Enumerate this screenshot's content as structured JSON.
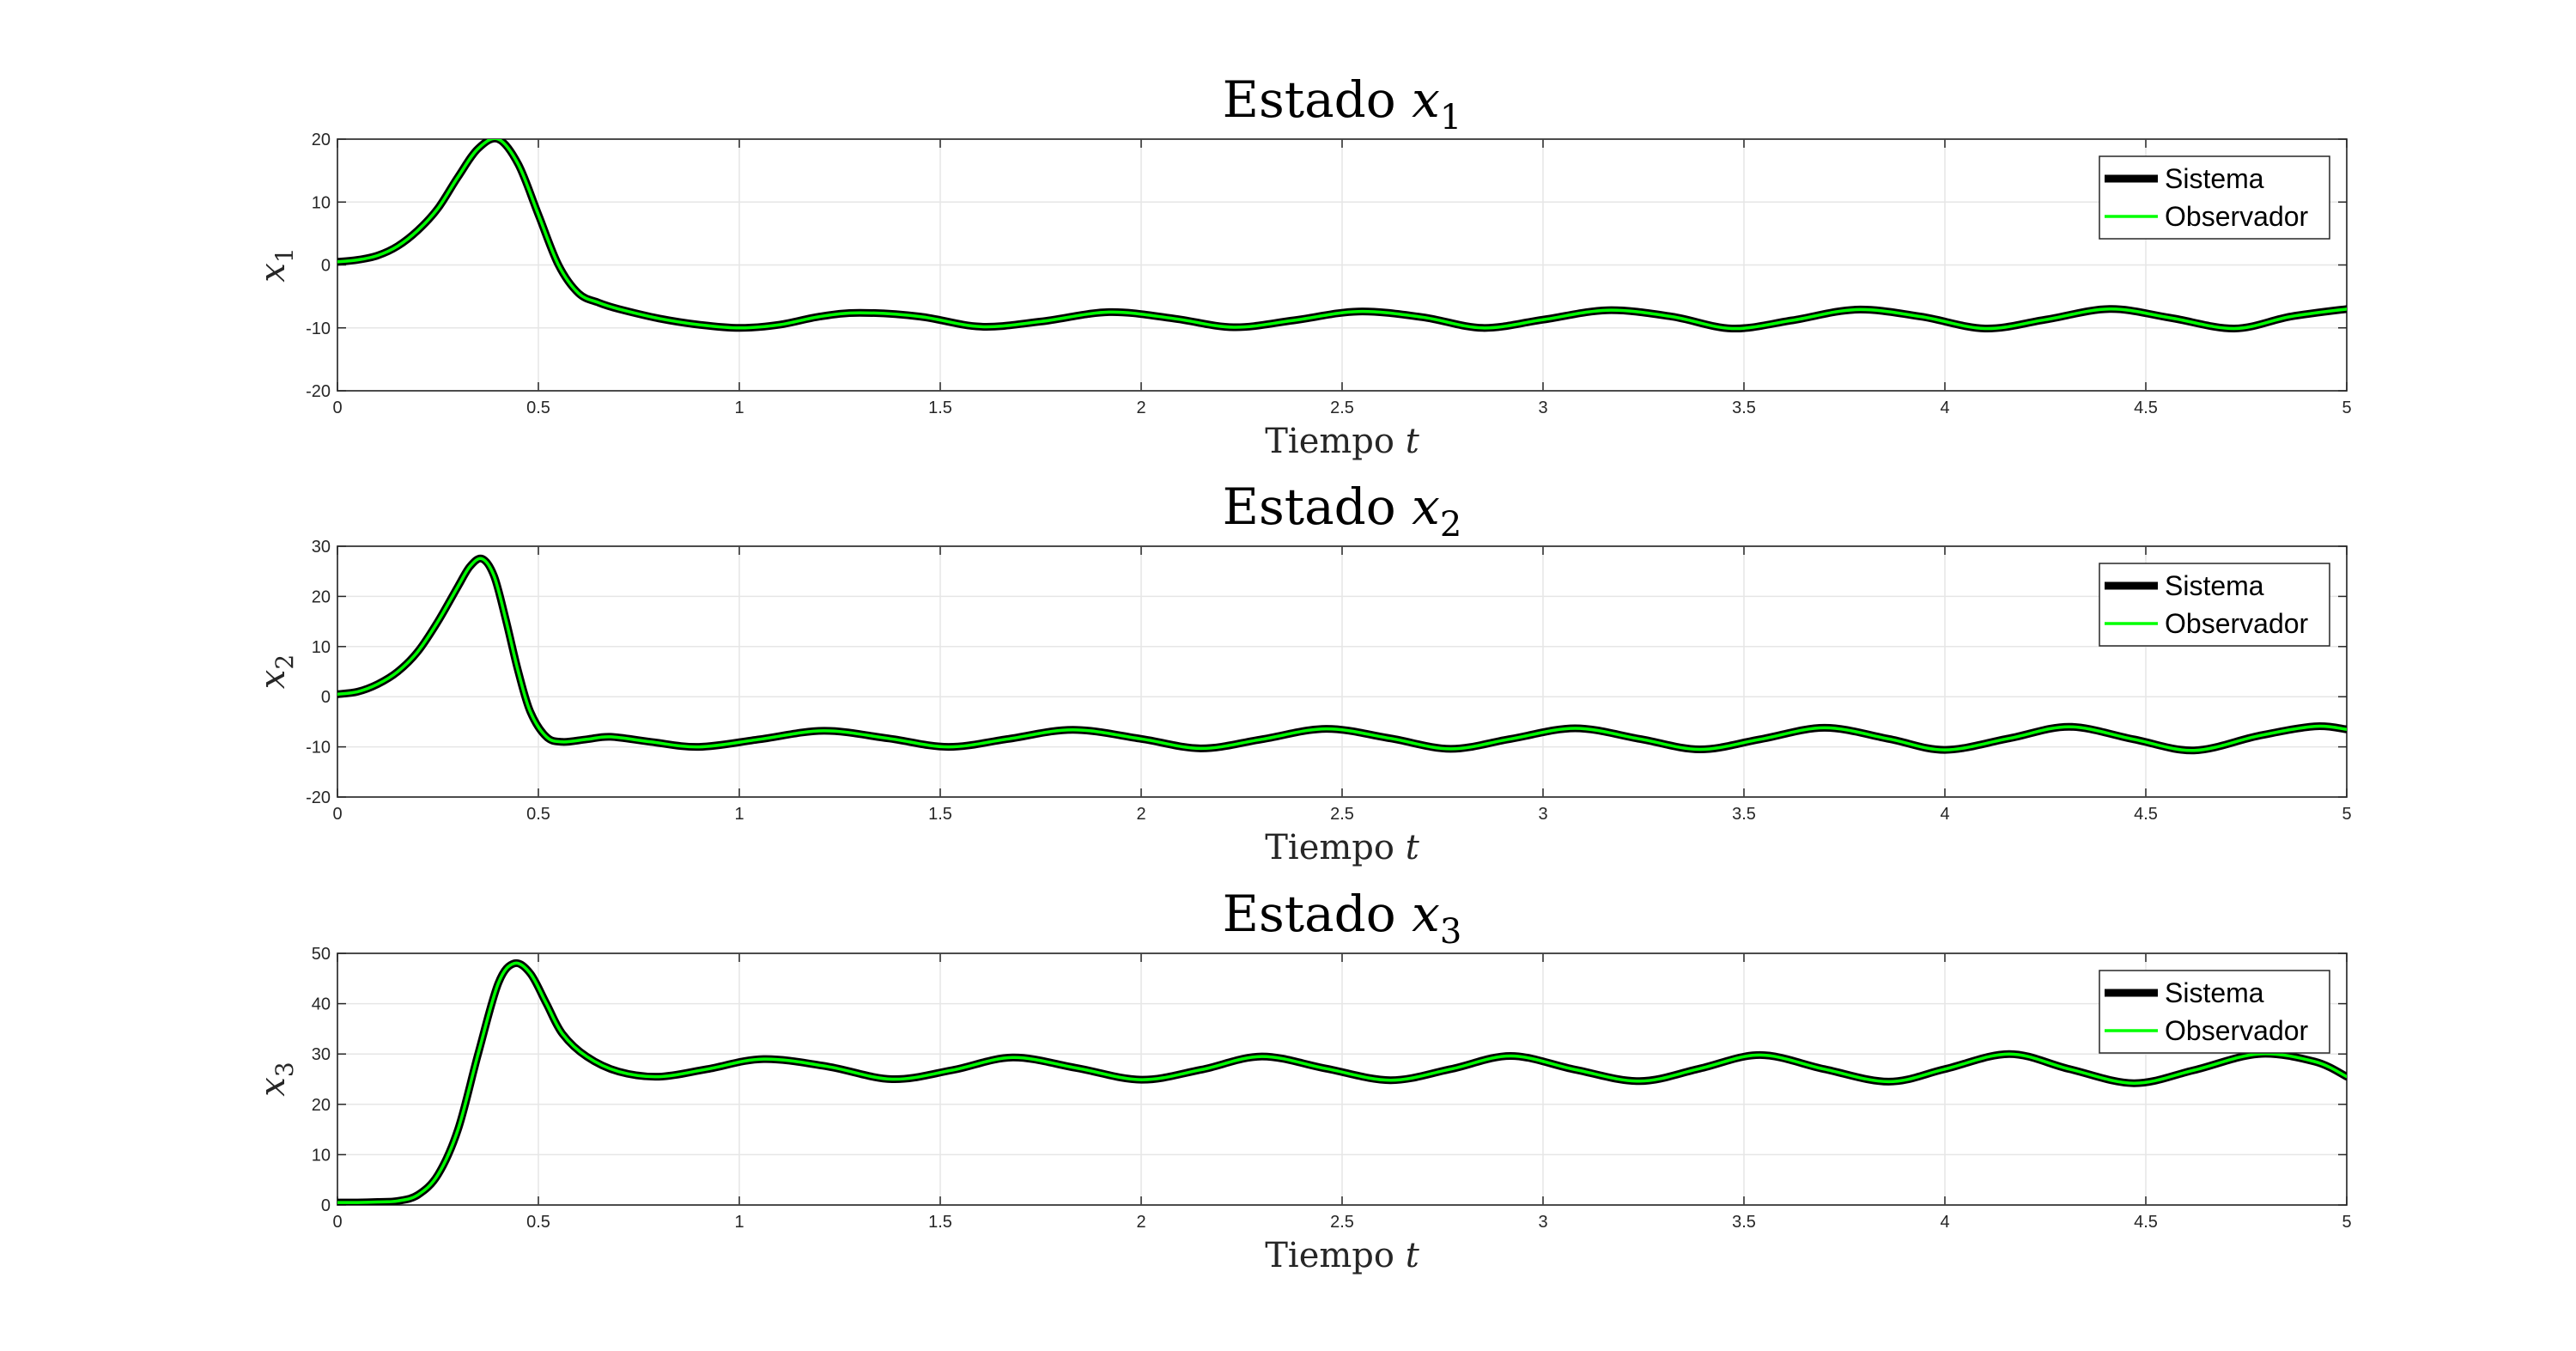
{
  "chart_data": [
    {
      "type": "line",
      "title": "Estado",
      "title_var": "x",
      "title_sub": "1",
      "xlabel": "Tiempo",
      "xlabel_var": "t",
      "ylabel_var": "x",
      "ylabel_sub": "1",
      "xlim": [
        0,
        5
      ],
      "ylim": [
        -20,
        20
      ],
      "xticks": [
        "0",
        "0.5",
        "1",
        "1.5",
        "2",
        "2.5",
        "3",
        "3.5",
        "4",
        "4.5",
        "5"
      ],
      "yticks": [
        "-20",
        "-10",
        "0",
        "10",
        "20"
      ],
      "grid": true,
      "legend_position": "top-right",
      "x": [
        0,
        0.05,
        0.1,
        0.15,
        0.2,
        0.25,
        0.3,
        0.35,
        0.4,
        0.45,
        0.5,
        0.55,
        0.6,
        0.65,
        0.7,
        0.8,
        0.9,
        1.0,
        1.1,
        1.2,
        1.3,
        1.45,
        1.6,
        1.75,
        1.92,
        2.08,
        2.23,
        2.38,
        2.54,
        2.7,
        2.85,
        3.0,
        3.16,
        3.32,
        3.47,
        3.62,
        3.78,
        3.94,
        4.1,
        4.25,
        4.41,
        4.56,
        4.72,
        4.86,
        5.0
      ],
      "series": [
        {
          "name": "Sistema",
          "color": "#000000",
          "values": [
            0.5,
            0.8,
            1.5,
            3,
            5.5,
            9,
            14,
            18.5,
            20,
            16,
            8,
            0,
            -4.5,
            -6,
            -7,
            -8.5,
            -9.5,
            -10,
            -9.5,
            -8.2,
            -7.6,
            -8.2,
            -9.8,
            -9,
            -7.5,
            -8.5,
            -9.9,
            -8.8,
            -7.4,
            -8.3,
            -10,
            -8.7,
            -7.2,
            -8.2,
            -10.1,
            -8.8,
            -7.1,
            -8.2,
            -10.1,
            -8.7,
            -7,
            -8.4,
            -10.1,
            -8.2,
            -7
          ]
        },
        {
          "name": "Observador",
          "color": "#00ff00",
          "values": [
            0.5,
            0.8,
            1.5,
            3,
            5.5,
            9,
            14,
            18.5,
            20,
            16,
            8,
            0,
            -4.5,
            -6,
            -7,
            -8.5,
            -9.5,
            -10,
            -9.5,
            -8.2,
            -7.6,
            -8.2,
            -9.8,
            -9,
            -7.5,
            -8.5,
            -9.9,
            -8.8,
            -7.4,
            -8.3,
            -10,
            -8.7,
            -7.2,
            -8.2,
            -10.1,
            -8.8,
            -7.1,
            -8.2,
            -10.1,
            -8.7,
            -7,
            -8.4,
            -10.1,
            -8.2,
            -7
          ]
        }
      ]
    },
    {
      "type": "line",
      "title": "Estado",
      "title_var": "x",
      "title_sub": "2",
      "xlabel": "Tiempo",
      "xlabel_var": "t",
      "ylabel_var": "x",
      "ylabel_sub": "2",
      "xlim": [
        0,
        5
      ],
      "ylim": [
        -20,
        30
      ],
      "xticks": [
        "0",
        "0.5",
        "1",
        "1.5",
        "2",
        "2.5",
        "3",
        "3.5",
        "4",
        "4.5",
        "5"
      ],
      "yticks": [
        "-20",
        "-10",
        "0",
        "10",
        "20",
        "30"
      ],
      "grid": true,
      "legend_position": "top-right",
      "x": [
        0,
        0.05,
        0.1,
        0.15,
        0.2,
        0.25,
        0.3,
        0.33,
        0.36,
        0.39,
        0.42,
        0.45,
        0.48,
        0.52,
        0.56,
        0.62,
        0.68,
        0.78,
        0.9,
        1.05,
        1.21,
        1.37,
        1.52,
        1.67,
        1.83,
        2.0,
        2.15,
        2.3,
        2.46,
        2.62,
        2.77,
        2.92,
        3.08,
        3.24,
        3.39,
        3.54,
        3.7,
        3.86,
        4.0,
        4.16,
        4.31,
        4.47,
        4.62,
        4.78,
        4.92,
        5.0
      ],
      "series": [
        {
          "name": "Sistema",
          "color": "#000000",
          "values": [
            0.5,
            1,
            2.5,
            5,
            9,
            15,
            22,
            26,
            27.5,
            24,
            15,
            5,
            -3,
            -8,
            -9,
            -8.5,
            -8,
            -9,
            -10,
            -8.5,
            -6.8,
            -8.3,
            -10,
            -8.4,
            -6.6,
            -8.4,
            -10.3,
            -8.5,
            -6.4,
            -8.3,
            -10.4,
            -8.4,
            -6.3,
            -8.4,
            -10.5,
            -8.5,
            -6.2,
            -8.4,
            -10.6,
            -8.3,
            -6,
            -8.5,
            -10.7,
            -7.8,
            -5.9,
            -6.5
          ]
        },
        {
          "name": "Observador",
          "color": "#00ff00",
          "values": [
            0.5,
            1,
            2.5,
            5,
            9,
            15,
            22,
            26,
            27.5,
            24,
            15,
            5,
            -3,
            -8,
            -9,
            -8.5,
            -8,
            -9,
            -10,
            -8.5,
            -6.8,
            -8.3,
            -10,
            -8.4,
            -6.6,
            -8.4,
            -10.3,
            -8.5,
            -6.4,
            -8.3,
            -10.4,
            -8.4,
            -6.3,
            -8.4,
            -10.5,
            -8.5,
            -6.2,
            -8.4,
            -10.6,
            -8.3,
            -6,
            -8.5,
            -10.7,
            -7.8,
            -5.9,
            -6.5
          ]
        }
      ]
    },
    {
      "type": "line",
      "title": "Estado",
      "title_var": "x",
      "title_sub": "3",
      "xlabel": "Tiempo",
      "xlabel_var": "t",
      "ylabel_var": "x",
      "ylabel_sub": "3",
      "xlim": [
        0,
        5
      ],
      "ylim": [
        0,
        50
      ],
      "xticks": [
        "0",
        "0.5",
        "1",
        "1.5",
        "2",
        "2.5",
        "3",
        "3.5",
        "4",
        "4.5",
        "5"
      ],
      "yticks": [
        "0",
        "10",
        "20",
        "30",
        "40",
        "50"
      ],
      "grid": true,
      "legend_position": "top-right",
      "x": [
        0,
        0.05,
        0.1,
        0.15,
        0.2,
        0.25,
        0.3,
        0.35,
        0.4,
        0.44,
        0.48,
        0.52,
        0.56,
        0.62,
        0.7,
        0.8,
        0.92,
        1.06,
        1.22,
        1.38,
        1.53,
        1.68,
        1.84,
        2.0,
        2.15,
        2.3,
        2.46,
        2.62,
        2.77,
        2.92,
        3.08,
        3.24,
        3.39,
        3.54,
        3.7,
        3.86,
        4.0,
        4.16,
        4.31,
        4.47,
        4.62,
        4.78,
        4.92,
        5.0
      ],
      "series": [
        {
          "name": "Sistema",
          "color": "#000000",
          "values": [
            0.5,
            0.5,
            0.6,
            0.8,
            2,
            6,
            15,
            30,
            44,
            48,
            46,
            40,
            34,
            29.5,
            26.5,
            25.5,
            27,
            29,
            27.5,
            25,
            26.8,
            29.3,
            27.2,
            24.9,
            26.9,
            29.5,
            27.1,
            24.8,
            27,
            29.6,
            26.9,
            24.6,
            27.1,
            29.8,
            27,
            24.5,
            27,
            30,
            27,
            24.2,
            26.8,
            30,
            28.5,
            25.5
          ]
        },
        {
          "name": "Observador",
          "color": "#00ff00",
          "values": [
            0.5,
            0.5,
            0.6,
            0.8,
            2,
            6,
            15,
            30,
            44,
            48,
            46,
            40,
            34,
            29.5,
            26.5,
            25.5,
            27,
            29,
            27.5,
            25,
            26.8,
            29.3,
            27.2,
            24.9,
            26.9,
            29.5,
            27.1,
            24.8,
            27,
            29.6,
            26.9,
            24.6,
            27.1,
            29.8,
            27,
            24.5,
            27,
            30,
            27,
            24.2,
            26.8,
            30,
            28.5,
            25.5
          ]
        }
      ]
    }
  ]
}
